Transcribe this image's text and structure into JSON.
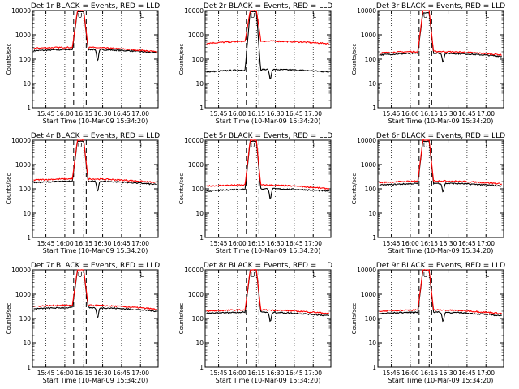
{
  "chart_data": {
    "type": "line",
    "layout": "3x3 grid",
    "common": {
      "ylabel": "Counts/sec",
      "xlabel": "Start Time (10-Mar-09 15:34:20)",
      "y_scale": "log",
      "ylim": [
        1,
        10000
      ],
      "y_ticks": [
        "1",
        "10",
        "100",
        "1000",
        "10000"
      ],
      "x_ticks": [
        "15:45",
        "16:00",
        "16:15",
        "16:30",
        "16:45",
        "17:00"
      ],
      "xlim": [
        "15:34:20",
        "17:14:00"
      ],
      "vertical_dotted_lines": [
        "15:45",
        "16:00",
        "16:15",
        "16:30",
        "16:45",
        "17:00"
      ],
      "vertical_dashed_lines": [
        "16:07",
        "16:17"
      ],
      "peak_marker": "U",
      "corner_marker": "L",
      "series_colors": {
        "events": "#000000",
        "lld": "#ff0000"
      }
    },
    "panels": [
      {
        "title": "Det 1r BLACK = Events, RED = LLD",
        "events": {
          "baseline": 220,
          "peak": 9000,
          "dip": 60,
          "end": 180
        },
        "lld": {
          "baseline": 280,
          "peak": 10000,
          "end": 200
        }
      },
      {
        "title": "Det 2r BLACK = Events, RED = LLD",
        "events": {
          "baseline": 30,
          "peak": 9000,
          "dip": 12,
          "end": 30
        },
        "lld": {
          "baseline": 450,
          "peak": 10000,
          "end": 430
        }
      },
      {
        "title": "Det 3r BLACK = Events, RED = LLD",
        "events": {
          "baseline": 150,
          "peak": 8000,
          "dip": 60,
          "end": 130
        },
        "lld": {
          "baseline": 180,
          "peak": 10000,
          "end": 150
        }
      },
      {
        "title": "Det 4r BLACK = Events, RED = LLD",
        "events": {
          "baseline": 180,
          "peak": 9000,
          "dip": 60,
          "end": 150
        },
        "lld": {
          "baseline": 230,
          "peak": 10000,
          "end": 180
        }
      },
      {
        "title": "Det 5r BLACK = Events, RED = LLD",
        "events": {
          "baseline": 80,
          "peak": 9000,
          "dip": 30,
          "end": 80
        },
        "lld": {
          "baseline": 130,
          "peak": 10000,
          "end": 100
        }
      },
      {
        "title": "Det 6r BLACK = Events, RED = LLD",
        "events": {
          "baseline": 140,
          "peak": 9000,
          "dip": 60,
          "end": 130
        },
        "lld": {
          "baseline": 180,
          "peak": 10000,
          "end": 160
        }
      },
      {
        "title": "Det 7r BLACK = Events, RED = LLD",
        "events": {
          "baseline": 250,
          "peak": 9000,
          "dip": 80,
          "end": 200
        },
        "lld": {
          "baseline": 320,
          "peak": 10000,
          "end": 240
        }
      },
      {
        "title": "Det 8r BLACK = Events, RED = LLD",
        "events": {
          "baseline": 160,
          "peak": 9000,
          "dip": 60,
          "end": 130
        },
        "lld": {
          "baseline": 200,
          "peak": 10000,
          "end": 160
        }
      },
      {
        "title": "Det 9r BLACK = Events, RED = LLD",
        "events": {
          "baseline": 160,
          "peak": 9000,
          "dip": 60,
          "end": 130
        },
        "lld": {
          "baseline": 200,
          "peak": 10000,
          "end": 160
        }
      }
    ]
  }
}
